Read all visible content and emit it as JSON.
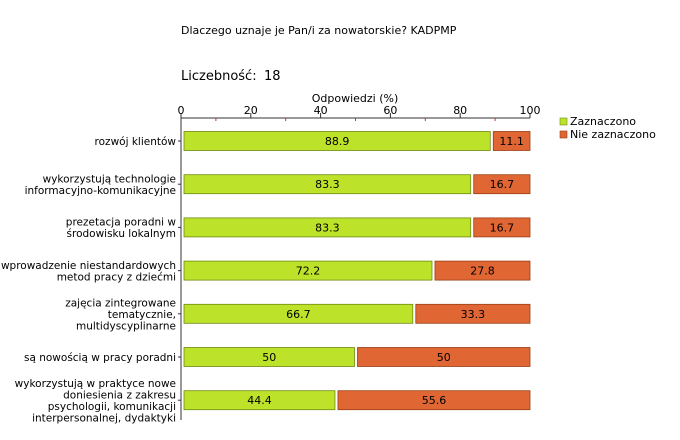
{
  "title": "Dlaczego uznaje je Pan/i za nowatorskie? KADPMP",
  "count_label": "Liczebność:",
  "count_value": "18",
  "colors": {
    "selected": "#bde22a",
    "not_selected": "#e06633",
    "bar_border": "#6f8a10",
    "bar_border_red": "#9a3f15"
  },
  "chart_data": {
    "type": "bar",
    "orientation": "horizontal",
    "stacked": true,
    "axis_title": "Odpowiedzi (%)",
    "xlim": [
      0,
      100
    ],
    "ticks": [
      0,
      20,
      40,
      60,
      80,
      100
    ],
    "legend_position": "top-right",
    "categories": [
      [
        "rozwój klientów"
      ],
      [
        "wykorzystują technologie",
        "informacyjno-komunikacyjne"
      ],
      [
        "prezetacja poradni w",
        "środowisku lokalnym"
      ],
      [
        "wprowadzenie niestandardowych",
        "metod pracy z dziećmi"
      ],
      [
        "zajęcia zintegrowane",
        "tematycznie,",
        "multidyscyplinarne"
      ],
      [
        "są nowością w pracy poradni"
      ],
      [
        "wykorzystują w praktyce nowe",
        "doniesienia z zakresu",
        "psychologii, komunikacji",
        "interpersonalnej, dydaktyki"
      ]
    ],
    "series": [
      {
        "name": "Zaznaczono",
        "values": [
          88.9,
          83.3,
          83.3,
          72.2,
          66.7,
          50,
          44.4
        ],
        "labels": [
          "88.9",
          "83.3",
          "83.3",
          "72.2",
          "66.7",
          "50",
          "44.4"
        ]
      },
      {
        "name": "Nie zaznaczono",
        "values": [
          11.1,
          16.7,
          16.7,
          27.8,
          33.3,
          50,
          55.6
        ],
        "labels": [
          "11.1",
          "16.7",
          "16.7",
          "27.8",
          "33.3",
          "50",
          "55.6"
        ]
      }
    ]
  }
}
